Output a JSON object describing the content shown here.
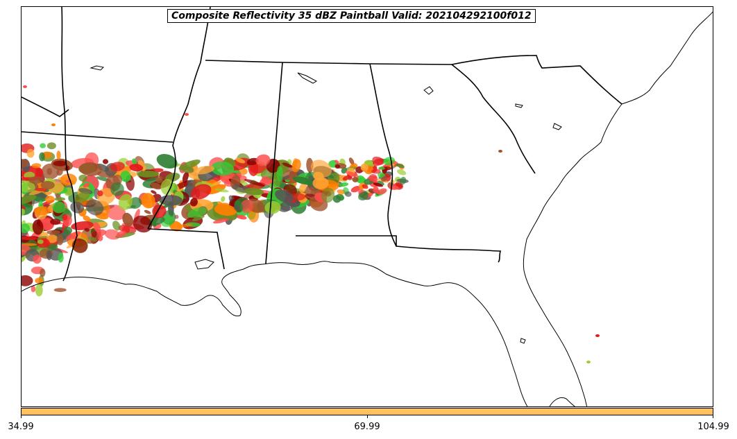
{
  "title": "Composite Reflectivity 35 dBZ Paintball Valid: 202104292100f012",
  "colorbar": {
    "color": "#FFC25E",
    "ticks": [
      "34.99",
      "69.99",
      "104.99"
    ]
  },
  "colors": {
    "member_palette": [
      "#E31A1C",
      "#FF7F00",
      "#33CC33",
      "#8B0000",
      "#6B8E23",
      "#FFA533",
      "#2E7D32",
      "#A0522D",
      "#9ACD32",
      "#FF4D4D",
      "#555555"
    ]
  },
  "map": {
    "region": "Southeastern United States",
    "features": [
      "state-borders",
      "coastline",
      "lakes"
    ]
  }
}
